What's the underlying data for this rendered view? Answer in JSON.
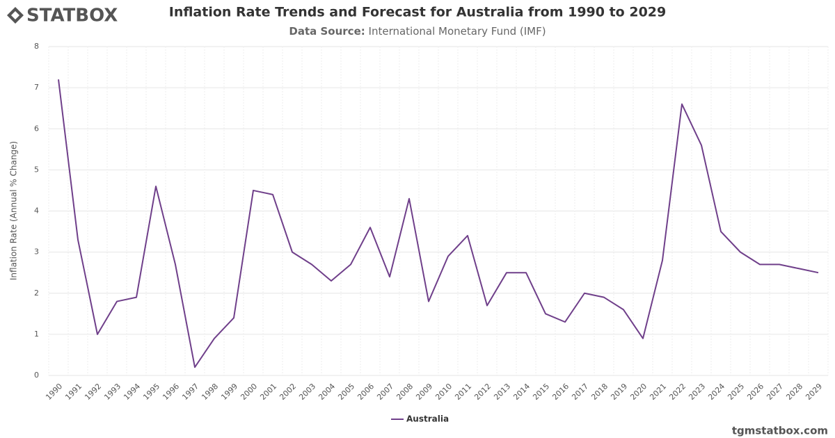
{
  "logo": "STATBOX",
  "footer": "tgmstatbox.com",
  "chart_data": {
    "type": "line",
    "title": "Inflation Rate Trends and Forecast for Australia from 1990 to 2029",
    "subtitle_label": "Data Source:",
    "subtitle": "International Monetary Fund (IMF)",
    "y_label": "Inflation Rate (Annual % Change)",
    "categories": [
      "1990",
      "1991",
      "1992",
      "1993",
      "1994",
      "1995",
      "1996",
      "1997",
      "1998",
      "1999",
      "2000",
      "2001",
      "2002",
      "2003",
      "2004",
      "2005",
      "2006",
      "2007",
      "2008",
      "2009",
      "2010",
      "2011",
      "2012",
      "2013",
      "2014",
      "2015",
      "2016",
      "2017",
      "2018",
      "2019",
      "2020",
      "2021",
      "2022",
      "2023",
      "2024",
      "2025",
      "2026",
      "2027",
      "2028",
      "2029"
    ],
    "series": [
      {
        "name": "Australia",
        "color": "#6f3f8a",
        "values": [
          7.2,
          3.3,
          1.0,
          1.8,
          1.9,
          4.6,
          2.7,
          0.2,
          0.9,
          1.4,
          4.5,
          4.4,
          3.0,
          2.7,
          2.3,
          2.7,
          3.6,
          2.4,
          4.3,
          1.8,
          2.9,
          3.4,
          1.7,
          2.5,
          2.5,
          1.5,
          1.3,
          2.0,
          1.9,
          1.6,
          0.9,
          2.8,
          6.6,
          5.6,
          3.5,
          3.0,
          2.7,
          2.7,
          2.6,
          2.5
        ]
      }
    ],
    "ylim": [
      0,
      8
    ],
    "yticks": [
      0,
      1,
      2,
      3,
      4,
      5,
      6,
      7,
      8
    ],
    "grid": true,
    "legend": "bottom"
  }
}
